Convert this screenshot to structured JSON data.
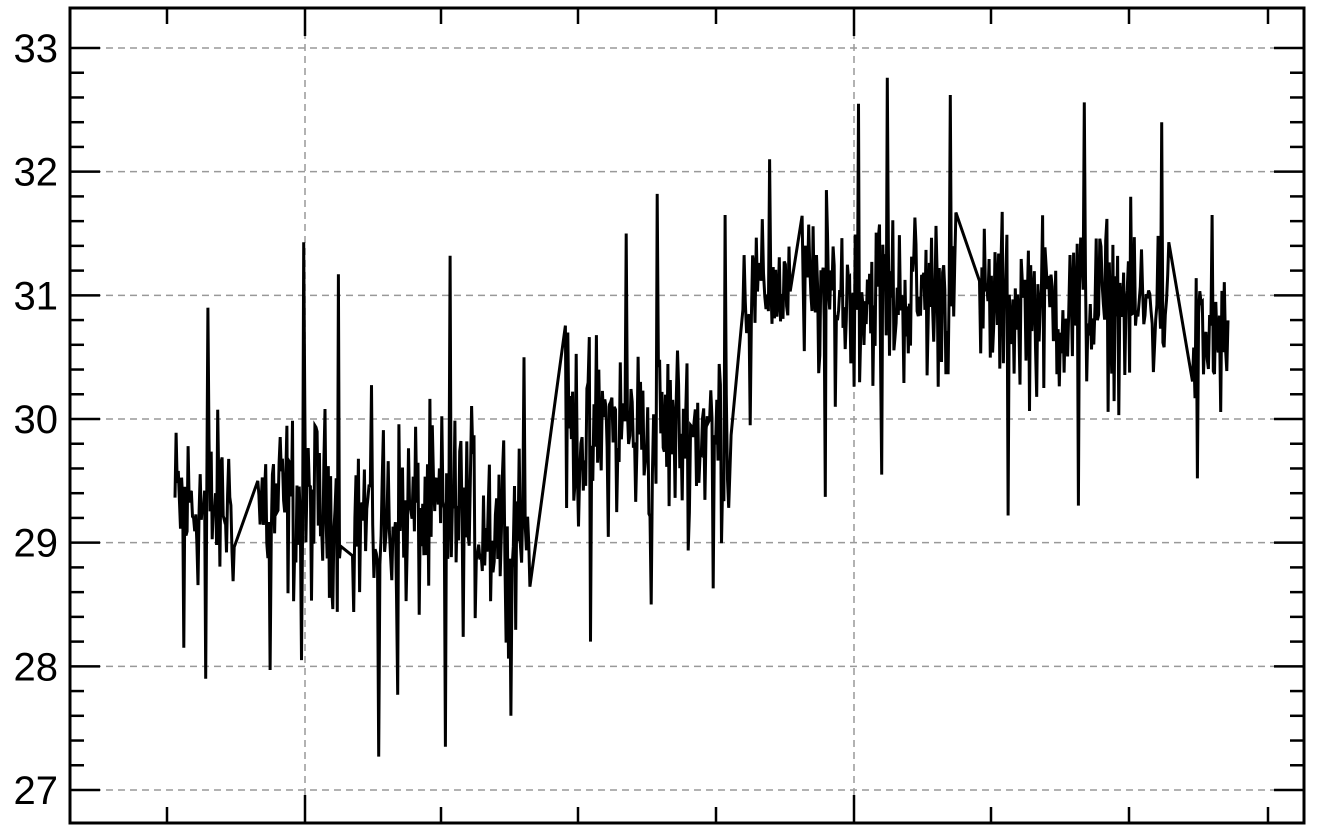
{
  "chart_data": {
    "type": "line",
    "title": "",
    "xlabel": "",
    "ylabel": "",
    "ylim": [
      26.8,
      33.3
    ],
    "y_ticks": [
      27,
      28,
      29,
      30,
      31,
      32,
      33
    ],
    "y_tick_labels": [
      "27",
      "28",
      "29",
      "30",
      "31",
      "32",
      "33"
    ],
    "grid": true,
    "x_tick_labels": [],
    "series": [
      {
        "color": "#000000",
        "segments": [
          {
            "x_range": [
              0.0,
              0.05
            ],
            "mean": 29.3,
            "spread": 0.65,
            "n": 55,
            "dips": [
              28.15,
              27.9
            ],
            "peaks": [
              30.9
            ]
          },
          {
            "x_range": [
              0.07,
              0.14
            ],
            "mean": 29.3,
            "spread": 0.7,
            "n": 75,
            "dips": [
              27.97,
              28.05
            ],
            "peaks": [
              31.43,
              31.17
            ]
          },
          {
            "x_range": [
              0.15,
              0.3
            ],
            "mean": 29.2,
            "spread": 0.75,
            "n": 150,
            "dips": [
              27.27,
              27.35,
              27.6,
              27.77
            ],
            "peaks": [
              31.32,
              30.5
            ]
          },
          {
            "x_range": [
              0.33,
              0.47
            ],
            "mean": 29.9,
            "spread": 0.7,
            "n": 140,
            "dips": [
              28.2,
              28.5,
              28.63
            ],
            "peaks": [
              31.82,
              31.65,
              31.5
            ]
          },
          {
            "x_range": [
              0.48,
              0.52
            ],
            "mean": 31.05,
            "spread": 0.45,
            "n": 40,
            "dips": [
              29.95
            ],
            "peaks": [
              32.1
            ]
          },
          {
            "x_range": [
              0.53,
              0.66
            ],
            "mean": 31.0,
            "spread": 0.65,
            "n": 140,
            "dips": [
              29.37,
              29.55
            ],
            "peaks": [
              32.76,
              32.62,
              32.55
            ]
          },
          {
            "x_range": [
              0.68,
              0.84
            ],
            "mean": 30.9,
            "spread": 0.65,
            "n": 160,
            "dips": [
              29.22,
              29.3
            ],
            "peaks": [
              32.56,
              32.4
            ]
          },
          {
            "x_range": [
              0.86,
              0.89
            ],
            "mean": 30.6,
            "spread": 0.55,
            "n": 30,
            "dips": [
              29.52
            ],
            "peaks": [
              31.65
            ]
          }
        ]
      }
    ]
  }
}
